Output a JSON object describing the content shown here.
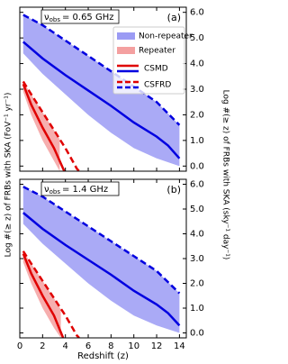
{
  "ylabel": "Log #(≥ z) of FRBs with SKA (FoV⁻¹ yr⁻¹)",
  "y2label": "Log #(≥ z) of FRBs with SKA (sky⁻¹ day⁻¹)",
  "chart_data": [
    {
      "type": "band-line",
      "panel_label": "(a)",
      "annotation": {
        "symbol": "ν",
        "subscript": "obs",
        "text": "= 0.65 GHz"
      },
      "xlim": [
        0,
        14.6
      ],
      "xticks": [
        0,
        2,
        4,
        6,
        8,
        10,
        12,
        14
      ],
      "ylim": [
        -0.2,
        6.2
      ],
      "yticks": [
        {
          "value": 0,
          "label": "0.0"
        },
        {
          "value": 1,
          "label": "1.0"
        },
        {
          "value": 2,
          "label": "2.0"
        },
        {
          "value": 3,
          "label": "3.0"
        },
        {
          "value": 4,
          "label": "4.0"
        },
        {
          "value": 5,
          "label": "5.0"
        },
        {
          "value": 6,
          "label": "6.0"
        }
      ],
      "legend": "upper right",
      "line_legend": [
        {
          "name": "CSMD",
          "dashed": false
        },
        {
          "name": "CSFRD",
          "dashed": true
        }
      ],
      "series": [
        {
          "name": "Non-repeater",
          "color": "#0000e0",
          "band_color": "#9b9bf4",
          "band": {
            "x": [
              0.3,
              2,
              4,
              6,
              8,
              10,
              12,
              14
            ],
            "upper": [
              5.9,
              5.5,
              4.9,
              4.3,
              3.7,
              3.1,
              2.5,
              1.6
            ],
            "lower": [
              4.4,
              3.6,
              2.8,
              2.0,
              1.3,
              0.7,
              0.3,
              0.0
            ]
          },
          "lines": [
            {
              "dashed": false,
              "x": [
                0.3,
                2,
                4,
                6,
                8,
                10,
                12,
                13,
                14
              ],
              "values": [
                4.85,
                4.2,
                3.55,
                2.95,
                2.35,
                1.7,
                1.15,
                0.8,
                0.3
              ]
            },
            {
              "dashed": true,
              "x": [
                0.3,
                2,
                4,
                6,
                8,
                10,
                12,
                14
              ],
              "values": [
                5.9,
                5.5,
                4.9,
                4.3,
                3.7,
                3.1,
                2.5,
                1.6
              ]
            }
          ]
        },
        {
          "name": "Repeater",
          "color": "#e00000",
          "band_color": "#f4a0a0",
          "band": {
            "x": [
              0.3,
              1,
              2,
              3,
              3.5
            ],
            "upper": [
              3.3,
              2.8,
              2.1,
              1.4,
              1.05
            ],
            "lower": [
              2.9,
              2.0,
              1.0,
              0.2,
              -0.2
            ]
          },
          "lines": [
            {
              "dashed": false,
              "x": [
                0.3,
                1,
                2,
                3,
                3.9
              ],
              "values": [
                3.2,
                2.4,
                1.5,
                0.7,
                -0.2
              ]
            },
            {
              "dashed": true,
              "x": [
                0.3,
                1,
                2,
                3,
                4,
                5,
                5.2
              ],
              "values": [
                3.3,
                2.8,
                2.1,
                1.4,
                0.7,
                -0.1,
                -0.2
              ]
            }
          ]
        }
      ]
    },
    {
      "type": "band-line",
      "panel_label": "(b)",
      "annotation": {
        "symbol": "ν",
        "subscript": "obs",
        "text": "= 1.4 GHz"
      },
      "xlabel": "Redshift (z)",
      "xlim": [
        0,
        14.6
      ],
      "xticks": [
        0,
        2,
        4,
        6,
        8,
        10,
        12,
        14
      ],
      "ylim": [
        -0.2,
        6.2
      ],
      "yticks": [
        {
          "value": 0,
          "label": "0.0"
        },
        {
          "value": 1,
          "label": "1.0"
        },
        {
          "value": 2,
          "label": "2.0"
        },
        {
          "value": 3,
          "label": "3.0"
        },
        {
          "value": 4,
          "label": "4.0"
        },
        {
          "value": 5,
          "label": "5.0"
        },
        {
          "value": 6,
          "label": "6.0"
        }
      ],
      "series": [
        {
          "name": "Non-repeater",
          "color": "#0000e0",
          "band_color": "#9b9bf4",
          "band": {
            "x": [
              0.3,
              2,
              4,
              6,
              8,
              10,
              12,
              14
            ],
            "upper": [
              5.9,
              5.5,
              4.9,
              4.3,
              3.7,
              3.1,
              2.5,
              1.6
            ],
            "lower": [
              4.4,
              3.6,
              2.8,
              2.0,
              1.3,
              0.7,
              0.3,
              0.0
            ]
          },
          "lines": [
            {
              "dashed": false,
              "x": [
                0.3,
                2,
                4,
                6,
                8,
                10,
                12,
                13,
                14
              ],
              "values": [
                4.85,
                4.2,
                3.55,
                2.95,
                2.35,
                1.7,
                1.15,
                0.8,
                0.3
              ]
            },
            {
              "dashed": true,
              "x": [
                0.3,
                2,
                4,
                6,
                8,
                10,
                12,
                14
              ],
              "values": [
                5.9,
                5.5,
                4.9,
                4.3,
                3.7,
                3.1,
                2.5,
                1.6
              ]
            }
          ]
        },
        {
          "name": "Repeater",
          "color": "#e00000",
          "band_color": "#f4a0a0",
          "band": {
            "x": [
              0.3,
              1,
              2,
              3,
              3.6
            ],
            "upper": [
              3.3,
              2.8,
              2.1,
              1.4,
              0.95
            ],
            "lower": [
              2.85,
              2.0,
              1.0,
              0.2,
              -0.2
            ]
          },
          "lines": [
            {
              "dashed": false,
              "x": [
                0.3,
                1,
                2,
                3,
                3.8
              ],
              "values": [
                3.2,
                2.4,
                1.5,
                0.7,
                -0.2
              ]
            },
            {
              "dashed": true,
              "x": [
                0.3,
                1,
                2,
                3,
                4,
                5,
                5.2
              ],
              "values": [
                3.3,
                2.8,
                2.1,
                1.4,
                0.7,
                -0.1,
                -0.2
              ]
            }
          ]
        }
      ]
    }
  ]
}
